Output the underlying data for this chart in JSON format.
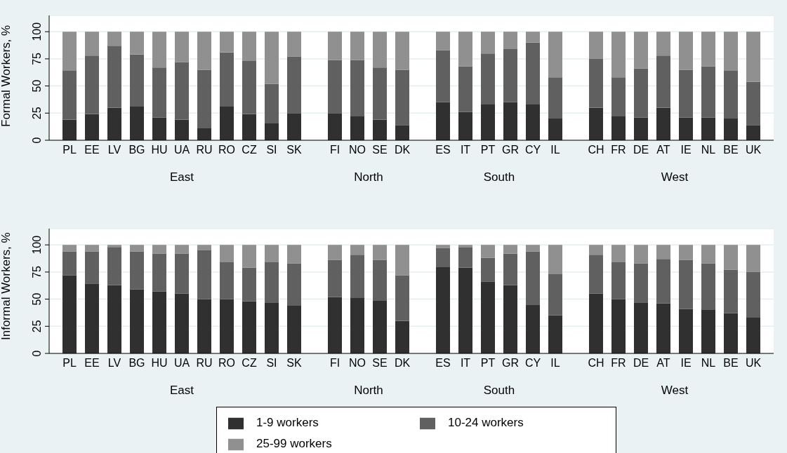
{
  "chart_data": [
    {
      "type": "bar",
      "stacked": true,
      "ylabel": "Formal Workers, %",
      "xlabel": "East",
      "categories": [
        "PL",
        "EE",
        "LV",
        "BG",
        "HU",
        "UA",
        "RU",
        "RO",
        "CZ",
        "SI",
        "SK"
      ],
      "ylim": [
        0,
        115
      ],
      "yticks": [
        0,
        25,
        50,
        75,
        100
      ],
      "grid": "y",
      "series": [
        {
          "color": "#303030",
          "values": [
            19,
            24,
            30,
            31,
            21,
            19,
            11,
            31,
            24,
            16,
            25
          ]
        },
        {
          "color": "#606060",
          "values": [
            45,
            54,
            57,
            48,
            46,
            53,
            54,
            50,
            49,
            36,
            52
          ]
        },
        {
          "color": "#909090",
          "values": [
            36,
            22,
            13,
            21,
            33,
            28,
            35,
            19,
            27,
            48,
            23
          ]
        }
      ]
    },
    {
      "type": "bar",
      "stacked": true,
      "xlabel": "North",
      "categories": [
        "FI",
        "NO",
        "SE",
        "DK"
      ],
      "ylim": [
        0,
        115
      ],
      "yticks": [
        0,
        25,
        50,
        75,
        100
      ],
      "grid": "y",
      "tick_labels": "x",
      "series": [
        {
          "color": "#303030",
          "values": [
            25,
            22,
            19,
            14
          ]
        },
        {
          "color": "#606060",
          "values": [
            49,
            52,
            48,
            51
          ]
        },
        {
          "color": "#909090",
          "values": [
            26,
            26,
            33,
            35
          ]
        }
      ]
    },
    {
      "type": "bar",
      "stacked": true,
      "xlabel": "South",
      "categories": [
        "ES",
        "IT",
        "PT",
        "GR",
        "CY",
        "IL"
      ],
      "ylim": [
        0,
        115
      ],
      "yticks": [
        0,
        25,
        50,
        75,
        100
      ],
      "grid": "y",
      "tick_labels": "x",
      "series": [
        {
          "color": "#303030",
          "values": [
            35,
            26,
            33,
            35,
            33,
            20
          ]
        },
        {
          "color": "#606060",
          "values": [
            48,
            42,
            47,
            49,
            57,
            38
          ]
        },
        {
          "color": "#909090",
          "values": [
            17,
            32,
            20,
            16,
            10,
            42
          ]
        }
      ]
    },
    {
      "type": "bar",
      "stacked": true,
      "xlabel": "West",
      "categories": [
        "CH",
        "FR",
        "DE",
        "AT",
        "IE",
        "NL",
        "BE",
        "UK"
      ],
      "ylim": [
        0,
        115
      ],
      "yticks": [
        0,
        25,
        50,
        75,
        100
      ],
      "grid": "y",
      "tick_labels": "x",
      "series": [
        {
          "color": "#303030",
          "values": [
            30,
            22,
            21,
            30,
            21,
            21,
            20,
            14
          ]
        },
        {
          "color": "#606060",
          "values": [
            45,
            36,
            45,
            48,
            44,
            47,
            44,
            40
          ]
        },
        {
          "color": "#909090",
          "values": [
            25,
            42,
            34,
            22,
            35,
            32,
            36,
            46
          ]
        }
      ]
    },
    {
      "type": "bar",
      "stacked": true,
      "ylabel": "Informal Workers, %",
      "xlabel": "East",
      "categories": [
        "PL",
        "EE",
        "LV",
        "BG",
        "HU",
        "UA",
        "RU",
        "RO",
        "CZ",
        "SI",
        "SK"
      ],
      "ylim": [
        0,
        115
      ],
      "yticks": [
        0,
        25,
        50,
        75,
        100
      ],
      "grid": "y",
      "series": [
        {
          "color": "#303030",
          "values": [
            72,
            64,
            63,
            59,
            57,
            55,
            50,
            50,
            48,
            47,
            44
          ]
        },
        {
          "color": "#606060",
          "values": [
            22,
            30,
            35,
            35,
            35,
            37,
            45,
            34,
            31,
            37,
            39
          ]
        },
        {
          "color": "#909090",
          "values": [
            6,
            6,
            2,
            6,
            8,
            8,
            5,
            16,
            21,
            16,
            17
          ]
        }
      ]
    },
    {
      "type": "bar",
      "stacked": true,
      "xlabel": "North",
      "categories": [
        "FI",
        "NO",
        "SE",
        "DK"
      ],
      "ylim": [
        0,
        115
      ],
      "yticks": [
        0,
        25,
        50,
        75,
        100
      ],
      "grid": "y",
      "tick_labels": "x",
      "series": [
        {
          "color": "#303030",
          "values": [
            52,
            51,
            49,
            30
          ]
        },
        {
          "color": "#606060",
          "values": [
            34,
            40,
            37,
            42
          ]
        },
        {
          "color": "#909090",
          "values": [
            14,
            9,
            14,
            28
          ]
        }
      ]
    },
    {
      "type": "bar",
      "stacked": true,
      "xlabel": "South",
      "categories": [
        "ES",
        "IT",
        "PT",
        "GR",
        "CY",
        "IL"
      ],
      "ylim": [
        0,
        115
      ],
      "yticks": [
        0,
        25,
        50,
        75,
        100
      ],
      "grid": "y",
      "tick_labels": "x",
      "series": [
        {
          "color": "#303030",
          "values": [
            80,
            79,
            66,
            63,
            45,
            35
          ]
        },
        {
          "color": "#606060",
          "values": [
            17,
            19,
            22,
            29,
            49,
            38
          ]
        },
        {
          "color": "#909090",
          "values": [
            3,
            2,
            12,
            8,
            6,
            27
          ]
        }
      ]
    },
    {
      "type": "bar",
      "stacked": true,
      "xlabel": "West",
      "categories": [
        "CH",
        "FR",
        "DE",
        "AT",
        "IE",
        "NL",
        "BE",
        "UK"
      ],
      "ylim": [
        0,
        115
      ],
      "yticks": [
        0,
        25,
        50,
        75,
        100
      ],
      "grid": "y",
      "tick_labels": "x",
      "legend": "bottom",
      "series": [
        {
          "name": "1-9 workers",
          "color": "#303030",
          "values": [
            55,
            50,
            47,
            46,
            41,
            40,
            37,
            33
          ]
        },
        {
          "name": "10-24 workers",
          "color": "#606060",
          "values": [
            36,
            34,
            36,
            41,
            45,
            43,
            40,
            42
          ]
        },
        {
          "name": "25-99 workers",
          "color": "#909090",
          "values": [
            9,
            16,
            17,
            13,
            14,
            17,
            23,
            25
          ]
        }
      ]
    }
  ]
}
